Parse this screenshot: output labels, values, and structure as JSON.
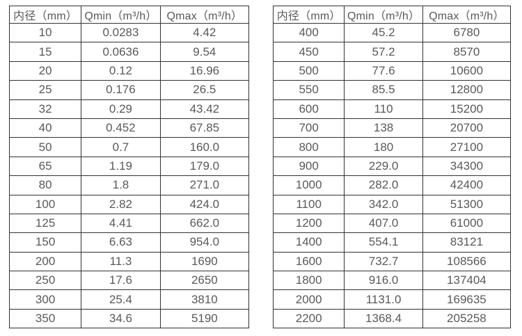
{
  "page": {
    "background_color": "#ffffff",
    "border_color": "#313131",
    "text_color": "#595959"
  },
  "tables": [
    {
      "name": "small-diameter-flow-table",
      "headers": [
        "内径（mm）",
        "Qmin（m³/h）",
        "Qmax（m³/h）"
      ],
      "rows": [
        [
          "10",
          "0.0283",
          "4.42"
        ],
        [
          "15",
          "0.0636",
          "9.54"
        ],
        [
          "20",
          "0.12",
          "16.96"
        ],
        [
          "25",
          "0.176",
          "26.5"
        ],
        [
          "32",
          "0.29",
          "43.42"
        ],
        [
          "40",
          "0.452",
          "67.85"
        ],
        [
          "50",
          "0.7",
          "160.0"
        ],
        [
          "65",
          "1.19",
          "179.0"
        ],
        [
          "80",
          "1.8",
          "271.0"
        ],
        [
          "100",
          "2.82",
          "424.0"
        ],
        [
          "125",
          "4.41",
          "662.0"
        ],
        [
          "150",
          "6.63",
          "954.0"
        ],
        [
          "200",
          "11.3",
          "1690"
        ],
        [
          "250",
          "17.6",
          "2650"
        ],
        [
          "300",
          "25.4",
          "3810"
        ],
        [
          "350",
          "34.6",
          "5190"
        ]
      ]
    },
    {
      "name": "large-diameter-flow-table",
      "headers": [
        "内径（mm）",
        "Qmin（m³/h）",
        "Qmax（m³/h）"
      ],
      "rows": [
        [
          "400",
          "45.2",
          "6780"
        ],
        [
          "450",
          "57.2",
          "8570"
        ],
        [
          "500",
          "77.6",
          "10600"
        ],
        [
          "550",
          "85.5",
          "12800"
        ],
        [
          "600",
          "110",
          "15200"
        ],
        [
          "700",
          "138",
          "20700"
        ],
        [
          "800",
          "180",
          "27100"
        ],
        [
          "900",
          "229.0",
          "34300"
        ],
        [
          "1000",
          "282.0",
          "42400"
        ],
        [
          "1100",
          "342.0",
          "51300"
        ],
        [
          "1200",
          "407.0",
          "61000"
        ],
        [
          "1400",
          "554.1",
          "83121"
        ],
        [
          "1600",
          "732.7",
          "108566"
        ],
        [
          "1800",
          "916.0",
          "137404"
        ],
        [
          "2000",
          "1131.0",
          "169635"
        ],
        [
          "2200",
          "1368.4",
          "205258"
        ]
      ]
    }
  ]
}
